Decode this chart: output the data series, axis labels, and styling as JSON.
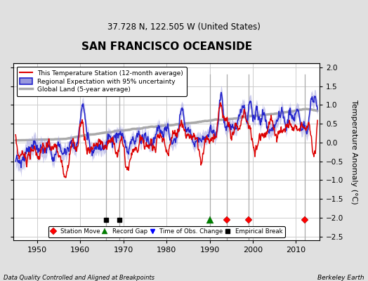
{
  "title": "SAN FRANCISCO OCEANSIDE",
  "subtitle": "37.728 N, 122.505 W (United States)",
  "xlabel_left": "Data Quality Controlled and Aligned at Breakpoints",
  "xlabel_right": "Berkeley Earth",
  "ylabel": "Temperature Anomaly (°C)",
  "ylim": [
    -2.6,
    2.1
  ],
  "xlim": [
    1944.5,
    2015.5
  ],
  "yticks": [
    -2.5,
    -2,
    -1.5,
    -1,
    -0.5,
    0,
    0.5,
    1,
    1.5,
    2
  ],
  "xticks": [
    1950,
    1960,
    1970,
    1980,
    1990,
    2000,
    2010
  ],
  "bg_color": "#e0e0e0",
  "plot_bg_color": "#ffffff",
  "grid_color": "#cccccc",
  "station_move_years": [
    1994,
    1999,
    2012
  ],
  "record_gap_years": [
    1990
  ],
  "time_obs_years": [],
  "empirical_break_years": [
    1966,
    1969
  ],
  "marker_y": -2.05,
  "vline_color": "#aaaaaa",
  "red_color": "#dd0000",
  "blue_color": "#2222cc",
  "blue_fill": "#9999dd",
  "gray_color": "#aaaaaa"
}
